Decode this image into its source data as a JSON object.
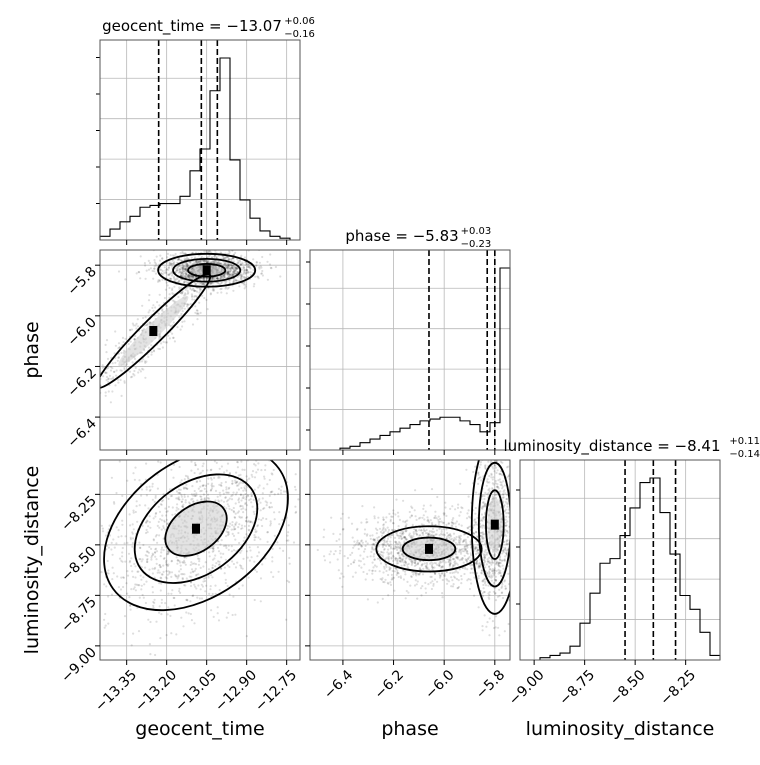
{
  "chart_data": {
    "type": "corner",
    "parameters": [
      "geocent_time",
      "phase",
      "luminosity_distance"
    ],
    "titles": [
      {
        "param": "geocent_time",
        "text": "geocent_time = −13.07",
        "sup": "+0.06",
        "sub": "−0.16"
      },
      {
        "param": "phase",
        "text": "phase = −5.83",
        "sup": "+0.03",
        "sub": "−0.23"
      },
      {
        "param": "luminosity_distance",
        "text": "luminosity_distance = −8.41",
        "sup": "+0.11",
        "sub": "−0.14"
      }
    ],
    "axis_labels": {
      "x": [
        "geocent_time",
        "phase",
        "luminosity_distance"
      ],
      "y": [
        "phase",
        "luminosity_distance"
      ]
    },
    "ranges": {
      "geocent_time": [
        -13.45,
        -12.7
      ],
      "phase": [
        -6.53,
        -5.74
      ],
      "luminosity_distance": [
        -9.07,
        -8.08
      ]
    },
    "ticks": {
      "geocent_time": [
        -13.35,
        -13.2,
        -13.05,
        -12.9,
        -12.75
      ],
      "phase": [
        -6.4,
        -6.2,
        -6.0,
        -5.8
      ],
      "luminosity_distance": [
        -9.0,
        -8.75,
        -8.5,
        -8.25
      ]
    },
    "tick_labels": {
      "geocent_time": [
        "−13.35",
        "−13.20",
        "−13.05",
        "−12.90",
        "−12.75"
      ],
      "phase": [
        "−6.4",
        "−6.2",
        "−6.0",
        "−5.8"
      ],
      "luminosity_distance": [
        "−9.00",
        "−8.75",
        "−8.50",
        "−8.25"
      ]
    },
    "quantiles": {
      "geocent_time": [
        -13.23,
        -13.07,
        -13.01
      ],
      "phase": [
        -6.06,
        -5.83,
        -5.8
      ],
      "luminosity_distance": [
        -8.55,
        -8.41,
        -8.3
      ]
    },
    "histograms": {
      "geocent_time": {
        "edges_start": -13.45,
        "bin_width": 0.0375,
        "values": [
          0.02,
          0.06,
          0.1,
          0.13,
          0.18,
          0.19,
          0.2,
          0.2,
          0.24,
          0.38,
          0.5,
          0.82,
          1.0,
          0.44,
          0.22,
          0.12,
          0.05,
          0.02,
          0.01,
          0.0
        ]
      },
      "phase": {
        "edges_start": -6.53,
        "bin_width": 0.0395,
        "values": [
          0,
          0,
          0,
          0.01,
          0.02,
          0.04,
          0.06,
          0.08,
          0.1,
          0.12,
          0.14,
          0.16,
          0.17,
          0.18,
          0.18,
          0.16,
          0.14,
          0.1,
          0.15,
          1.0
        ]
      },
      "luminosity_distance": {
        "edges_start": -9.07,
        "bin_width": 0.0495,
        "values": [
          0,
          0,
          0.01,
          0.02,
          0.03,
          0.06,
          0.16,
          0.29,
          0.42,
          0.44,
          0.54,
          0.66,
          0.77,
          0.79,
          0.64,
          0.46,
          0.28,
          0.22,
          0.12,
          0.02
        ]
      }
    },
    "density_modes": [
      {
        "x": "geocent_time",
        "y": "phase",
        "modes": [
          {
            "cx": -13.05,
            "cy": -5.82,
            "sx": 0.07,
            "sy": 0.025,
            "rot": 0,
            "levels": [
              1.0,
              1.8,
              2.6
            ]
          },
          {
            "cx": -13.25,
            "cy": -6.06,
            "sx": 0.23,
            "sy": 0.035,
            "rot": -45,
            "levels": [
              1.3
            ]
          }
        ]
      },
      {
        "x": "geocent_time",
        "y": "luminosity_distance",
        "modes": [
          {
            "cx": -13.09,
            "cy": -8.42,
            "sx": 0.16,
            "sy": 0.14,
            "rot": -36,
            "levels": [
              0.8,
              1.6,
              2.4
            ]
          }
        ]
      },
      {
        "x": "phase",
        "y": "luminosity_distance",
        "modes": [
          {
            "cx": -6.06,
            "cy": -8.52,
            "sx": 0.13,
            "sy": 0.07,
            "rot": 0,
            "levels": [
              0.8,
              1.6
            ]
          },
          {
            "cx": -5.8,
            "cy": -8.4,
            "sx": 0.035,
            "sy": 0.17,
            "rot": 0,
            "levels": [
              1.0,
              1.8,
              2.6
            ]
          }
        ]
      }
    ]
  }
}
